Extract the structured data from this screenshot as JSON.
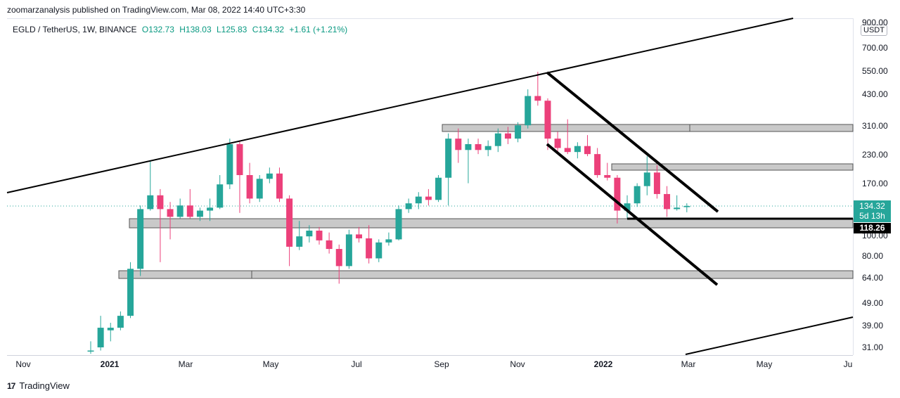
{
  "header": {
    "publisher_text": "zoomarzanalysis published on TradingView.com, Mar 08, 2022 14:40 UTC+3:30"
  },
  "legend": {
    "symbol": "EGLD / TetherUS, 1W, BINANCE",
    "open": "O132.73",
    "high": "H138.03",
    "low": "L125.83",
    "close": "C134.32",
    "change": "+1.61 (+1.21%)"
  },
  "price_axis": {
    "unit": "USDT",
    "labels": [
      "900.00",
      "700.00",
      "550.00",
      "430.00",
      "310.00",
      "230.00",
      "170.00",
      "100.00",
      "80.00",
      "64.00",
      "49.00",
      "39.00",
      "31.00"
    ],
    "current_price": "134.32",
    "countdown": "5d 13h",
    "level_tag": "118.26"
  },
  "time_axis": {
    "labels": [
      "Nov",
      "2021",
      "Mar",
      "May",
      "Jul",
      "Sep",
      "Nov",
      "2022",
      "Mar",
      "May",
      "Ju"
    ]
  },
  "footer": {
    "brand": "TradingView",
    "logo_text": "17"
  },
  "colors": {
    "up": "#26a69a",
    "down": "#ec407a",
    "line": "#000000",
    "zone": "#c9c9c9",
    "tag_green": "#26a69a",
    "tag_black": "#000000"
  },
  "chart_data": {
    "type": "candlestick",
    "symbol": "EGLD / TetherUS",
    "interval": "1W",
    "exchange": "BINANCE",
    "y_scale": "log",
    "ylim": [
      28,
      950
    ],
    "candles": [
      {
        "open": 30,
        "high": 33,
        "low": 29,
        "close": 30
      },
      {
        "open": 31,
        "high": 43,
        "low": 30,
        "close": 38
      },
      {
        "open": 37,
        "high": 40,
        "low": 33,
        "close": 38
      },
      {
        "open": 38,
        "high": 45,
        "low": 37,
        "close": 43
      },
      {
        "open": 43,
        "high": 75,
        "low": 42,
        "close": 70
      },
      {
        "open": 70,
        "high": 135,
        "low": 65,
        "close": 130
      },
      {
        "open": 130,
        "high": 215,
        "low": 128,
        "close": 150
      },
      {
        "open": 150,
        "high": 160,
        "low": 75,
        "close": 130
      },
      {
        "open": 130,
        "high": 140,
        "low": 95,
        "close": 120
      },
      {
        "open": 120,
        "high": 145,
        "low": 118,
        "close": 135
      },
      {
        "open": 135,
        "high": 160,
        "low": 118,
        "close": 120
      },
      {
        "open": 120,
        "high": 132,
        "low": 115,
        "close": 128
      },
      {
        "open": 128,
        "high": 145,
        "low": 115,
        "close": 132
      },
      {
        "open": 132,
        "high": 185,
        "low": 130,
        "close": 168
      },
      {
        "open": 168,
        "high": 270,
        "low": 160,
        "close": 255
      },
      {
        "open": 255,
        "high": 265,
        "low": 125,
        "close": 185
      },
      {
        "open": 185,
        "high": 210,
        "low": 138,
        "close": 145
      },
      {
        "open": 145,
        "high": 185,
        "low": 140,
        "close": 178
      },
      {
        "open": 178,
        "high": 200,
        "low": 170,
        "close": 188
      },
      {
        "open": 188,
        "high": 200,
        "low": 140,
        "close": 145
      },
      {
        "open": 145,
        "high": 150,
        "low": 72,
        "close": 88
      },
      {
        "open": 88,
        "high": 115,
        "low": 85,
        "close": 98
      },
      {
        "open": 98,
        "high": 110,
        "low": 92,
        "close": 104
      },
      {
        "open": 104,
        "high": 108,
        "low": 90,
        "close": 94
      },
      {
        "open": 94,
        "high": 102,
        "low": 82,
        "close": 86
      },
      {
        "open": 86,
        "high": 90,
        "low": 60,
        "close": 72
      },
      {
        "open": 72,
        "high": 105,
        "low": 70,
        "close": 100
      },
      {
        "open": 100,
        "high": 108,
        "low": 92,
        "close": 96
      },
      {
        "open": 96,
        "high": 110,
        "low": 74,
        "close": 78
      },
      {
        "open": 78,
        "high": 95,
        "low": 75,
        "close": 92
      },
      {
        "open": 92,
        "high": 102,
        "low": 89,
        "close": 95
      },
      {
        "open": 95,
        "high": 135,
        "low": 94,
        "close": 130
      },
      {
        "open": 130,
        "high": 145,
        "low": 125,
        "close": 138
      },
      {
        "open": 138,
        "high": 155,
        "low": 130,
        "close": 148
      },
      {
        "open": 148,
        "high": 160,
        "low": 135,
        "close": 143
      },
      {
        "open": 143,
        "high": 185,
        "low": 140,
        "close": 180
      },
      {
        "open": 180,
        "high": 285,
        "low": 135,
        "close": 270
      },
      {
        "open": 270,
        "high": 300,
        "low": 210,
        "close": 240
      },
      {
        "open": 240,
        "high": 270,
        "low": 170,
        "close": 255
      },
      {
        "open": 255,
        "high": 270,
        "low": 230,
        "close": 240
      },
      {
        "open": 240,
        "high": 265,
        "low": 225,
        "close": 250
      },
      {
        "open": 250,
        "high": 300,
        "low": 235,
        "close": 285
      },
      {
        "open": 285,
        "high": 305,
        "low": 255,
        "close": 270
      },
      {
        "open": 270,
        "high": 320,
        "low": 260,
        "close": 310
      },
      {
        "open": 310,
        "high": 450,
        "low": 300,
        "close": 420
      },
      {
        "open": 420,
        "high": 540,
        "low": 380,
        "close": 400
      },
      {
        "open": 400,
        "high": 410,
        "low": 240,
        "close": 270
      },
      {
        "open": 270,
        "high": 290,
        "low": 235,
        "close": 245
      },
      {
        "open": 245,
        "high": 330,
        "low": 230,
        "close": 235
      },
      {
        "open": 235,
        "high": 260,
        "low": 220,
        "close": 250
      },
      {
        "open": 250,
        "high": 280,
        "low": 225,
        "close": 230
      },
      {
        "open": 230,
        "high": 245,
        "low": 180,
        "close": 185
      },
      {
        "open": 185,
        "high": 210,
        "low": 175,
        "close": 180
      },
      {
        "open": 180,
        "high": 185,
        "low": 112,
        "close": 128
      },
      {
        "open": 128,
        "high": 150,
        "low": 118,
        "close": 138
      },
      {
        "open": 138,
        "high": 170,
        "low": 133,
        "close": 165
      },
      {
        "open": 165,
        "high": 225,
        "low": 150,
        "close": 190
      },
      {
        "open": 190,
        "high": 205,
        "low": 145,
        "close": 152
      },
      {
        "open": 152,
        "high": 165,
        "low": 120,
        "close": 130
      },
      {
        "open": 130,
        "high": 150,
        "low": 128,
        "close": 132
      },
      {
        "open": 132.73,
        "high": 138.03,
        "low": 125.83,
        "close": 134.32
      }
    ]
  }
}
